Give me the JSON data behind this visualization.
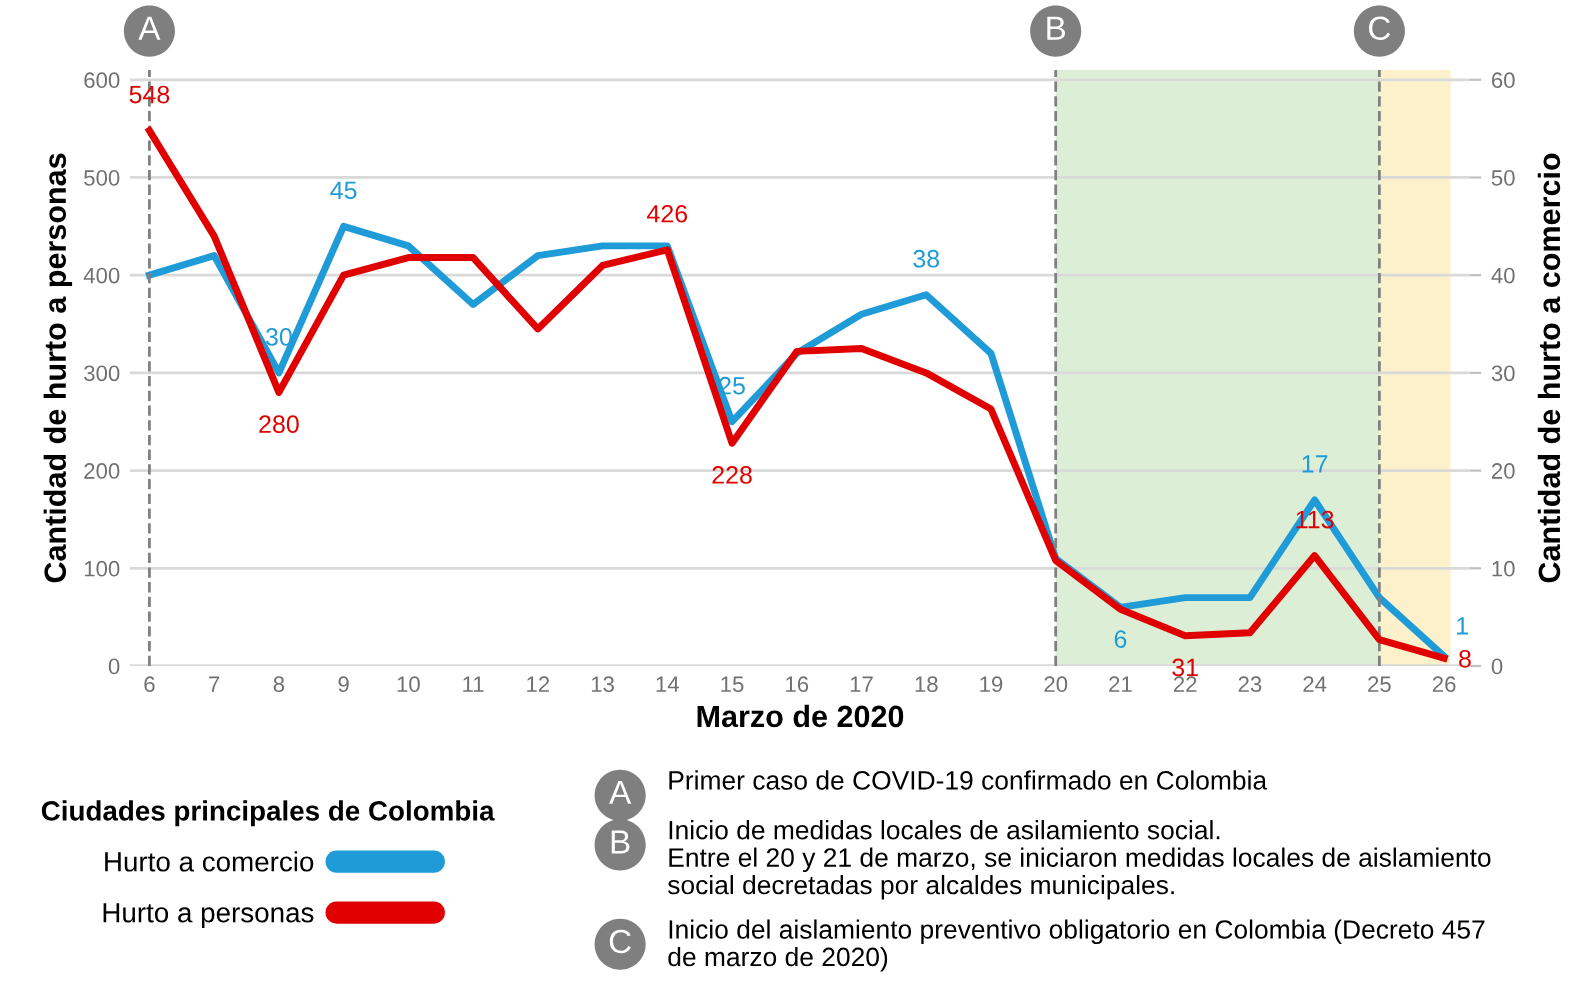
{
  "chart_data": {
    "type": "line",
    "xlabel": "Marzo de 2020",
    "ylabel": "Cantidad de hurto a personas",
    "y2label": "Cantidad de hurto a comercio",
    "legend_title": "Ciudades principales de Colombia",
    "legend": "bottom left",
    "x": [
      6,
      7,
      8,
      9,
      10,
      11,
      12,
      13,
      14,
      15,
      16,
      17,
      18,
      19,
      20,
      21,
      22,
      23,
      24,
      25,
      26
    ],
    "series": [
      {
        "name": "Hurto a comercio",
        "color": "#1f9bd7",
        "axis": "y2",
        "values": [
          40,
          42,
          30,
          45,
          43,
          37,
          42,
          43,
          43,
          25,
          32,
          36,
          38,
          32,
          11,
          6,
          7,
          7,
          17,
          7,
          1
        ],
        "value_labels": [
          null,
          null,
          "30",
          "45",
          null,
          null,
          null,
          null,
          null,
          "25",
          null,
          null,
          "38",
          null,
          null,
          "6",
          null,
          null,
          "17",
          null,
          "1"
        ]
      },
      {
        "name": "Hurto a personas",
        "color": "#e00000",
        "values": [
          548,
          440,
          280,
          400,
          418,
          418,
          345,
          410,
          426,
          228,
          322,
          325,
          300,
          263,
          108,
          58,
          31,
          34,
          113,
          27,
          8
        ],
        "value_labels": [
          "548",
          null,
          "280",
          null,
          null,
          null,
          null,
          null,
          "426",
          "228",
          null,
          null,
          null,
          null,
          null,
          null,
          "31",
          null,
          "113",
          null,
          "8"
        ]
      }
    ],
    "xlim": [
      5.7,
      26.4
    ],
    "xticks": [
      6,
      7,
      8,
      9,
      10,
      11,
      12,
      13,
      14,
      15,
      16,
      17,
      18,
      19,
      20,
      21,
      22,
      23,
      24,
      25,
      26
    ],
    "ylim": [
      0,
      610
    ],
    "yticks": [
      0,
      100,
      200,
      300,
      400,
      500,
      600
    ],
    "y2lim": [
      0,
      61
    ],
    "y2ticks": [
      0,
      10,
      20,
      30,
      40,
      50,
      60
    ],
    "grid": "y",
    "marker": "none",
    "line_style": "solid",
    "ref_lines": [
      {
        "axis": "x",
        "value": 6,
        "label": "A",
        "color": "#808080",
        "line_style": "dashed"
      },
      {
        "axis": "x",
        "value": 20,
        "label": "B",
        "color": "#808080",
        "line_style": "dashed"
      },
      {
        "axis": "x",
        "value": 25,
        "label": "C",
        "color": "#808080",
        "line_style": "dashed"
      }
    ],
    "bands": [
      {
        "axis": "x",
        "from": 20,
        "to": 25,
        "color": "#dcefd6"
      },
      {
        "axis": "x",
        "from": 25,
        "to": 26.1,
        "color": "#fdf1cc"
      }
    ],
    "annotations": [
      "Primer caso de COVID-19 confirmado en Colombia",
      "Inicio de medidas locales de asilamiento social.\nEntre el 20 y 21 de marzo, se iniciaron medidas locales de aislamiento\nsocial decretadas por alcaldes municipales.",
      "Inicio del aislamiento preventivo obligatorio en Colombia (Decreto 457\nde marzo de 2020)"
    ]
  }
}
